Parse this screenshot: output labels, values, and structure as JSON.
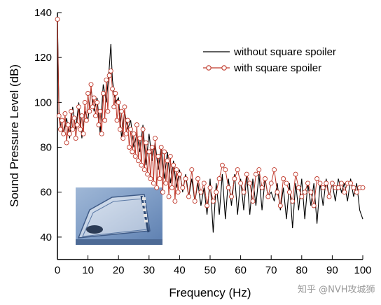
{
  "chart_data": {
    "type": "line",
    "title": "",
    "xlabel": "Frequency (Hz)",
    "ylabel": "Sound Pressure Level (dB)",
    "xlim": [
      0,
      100
    ],
    "ylim": [
      30,
      140
    ],
    "xticks": [
      0,
      10,
      20,
      30,
      40,
      50,
      60,
      70,
      80,
      90,
      100
    ],
    "yticks": [
      40,
      60,
      80,
      100,
      120,
      140
    ],
    "grid": false,
    "legend_position": "top-right",
    "series": [
      {
        "name": "without square spoiler",
        "color": "#000000",
        "marker": "none",
        "x": [
          0,
          0.5,
          1,
          2,
          3,
          4,
          5,
          6,
          7,
          8,
          9,
          10,
          11,
          12,
          13,
          14,
          15,
          16,
          17,
          17.5,
          18,
          19,
          20,
          21,
          22,
          23,
          24,
          25,
          26,
          27,
          28,
          29,
          30,
          31,
          32,
          33,
          34,
          35,
          36,
          37,
          38,
          39,
          40,
          41,
          42,
          43,
          44,
          45,
          46,
          47,
          48,
          49,
          50,
          51,
          52,
          53,
          54,
          55,
          56,
          57,
          58,
          59,
          60,
          61,
          62,
          63,
          64,
          65,
          66,
          67,
          68,
          69,
          70,
          71,
          72,
          73,
          74,
          75,
          76,
          77,
          78,
          79,
          80,
          81,
          82,
          83,
          84,
          85,
          86,
          87,
          88,
          89,
          90,
          91,
          92,
          93,
          94,
          95,
          96,
          97,
          98,
          99,
          100
        ],
        "y": [
          138,
          96,
          90,
          86,
          93,
          84,
          98,
          88,
          100,
          84,
          96,
          92,
          106,
          96,
          102,
          86,
          108,
          100,
          116,
          126,
          110,
          100,
          102,
          84,
          96,
          88,
          92,
          80,
          86,
          78,
          90,
          72,
          86,
          74,
          82,
          70,
          80,
          66,
          78,
          64,
          74,
          62,
          70,
          60,
          68,
          58,
          66,
          56,
          64,
          54,
          62,
          50,
          66,
          42,
          64,
          50,
          68,
          48,
          66,
          54,
          68,
          50,
          66,
          52,
          68,
          50,
          66,
          54,
          68,
          52,
          66,
          58,
          60,
          56,
          64,
          52,
          62,
          48,
          64,
          44,
          64,
          52,
          66,
          48,
          64,
          54,
          64,
          46,
          64,
          54,
          66,
          58,
          64,
          56,
          66,
          60,
          64,
          56,
          66,
          58,
          64,
          52,
          48
        ]
      },
      {
        "name": "with square spoiler",
        "color": "#c0392b",
        "marker": "open-circle",
        "x": [
          0,
          0.5,
          1,
          1.5,
          2,
          2.5,
          3,
          3.5,
          4,
          4.5,
          5,
          5.5,
          6,
          6.5,
          7,
          7.5,
          8,
          8.5,
          9,
          9.5,
          10,
          10.5,
          11,
          11.5,
          12,
          12.5,
          13,
          13.5,
          14,
          14.5,
          15,
          15.5,
          16,
          16.5,
          17,
          17.5,
          18,
          18.5,
          19,
          19.5,
          20,
          20.5,
          21,
          21.5,
          22,
          22.5,
          23,
          23.5,
          24,
          24.5,
          25,
          25.5,
          26,
          26.5,
          27,
          27.5,
          28,
          28.5,
          29,
          29.5,
          30,
          30.5,
          31,
          31.5,
          32,
          32.5,
          33,
          33.5,
          34,
          34.5,
          35,
          35.5,
          36,
          36.5,
          37,
          37.5,
          38,
          38.5,
          39,
          39.5,
          40,
          41,
          42,
          43,
          44,
          45,
          46,
          47,
          48,
          49,
          50,
          51,
          52,
          53,
          54,
          55,
          56,
          57,
          58,
          59,
          60,
          61,
          62,
          63,
          64,
          65,
          66,
          67,
          68,
          69,
          70,
          71,
          72,
          73,
          74,
          75,
          76,
          77,
          78,
          79,
          80,
          81,
          82,
          83,
          84,
          85,
          86,
          87,
          88,
          89,
          90,
          91,
          92,
          93,
          94,
          95,
          96,
          97,
          98,
          99,
          100
        ],
        "y": [
          137,
          94,
          88,
          92,
          86,
          95,
          82,
          90,
          86,
          96,
          88,
          93,
          84,
          90,
          98,
          88,
          94,
          86,
          100,
          92,
          104,
          96,
          108,
          98,
          102,
          94,
          100,
          90,
          96,
          86,
          104,
          92,
          110,
          96,
          112,
          114,
          106,
          98,
          104,
          92,
          100,
          88,
          96,
          84,
          98,
          86,
          92,
          80,
          88,
          78,
          86,
          76,
          90,
          74,
          84,
          72,
          88,
          70,
          82,
          68,
          78,
          66,
          80,
          64,
          84,
          62,
          76,
          66,
          80,
          60,
          78,
          64,
          74,
          58,
          76,
          62,
          72,
          56,
          70,
          60,
          68,
          62,
          66,
          58,
          70,
          56,
          66,
          60,
          64,
          54,
          62,
          56,
          60,
          66,
          72,
          70,
          62,
          58,
          66,
          70,
          64,
          60,
          68,
          64,
          56,
          68,
          70,
          62,
          66,
          58,
          64,
          70,
          60,
          54,
          66,
          64,
          60,
          56,
          68,
          62,
          58,
          60,
          64,
          60,
          54,
          66,
          64,
          62,
          64,
          58,
          64,
          62,
          62,
          64,
          60,
          64,
          64,
          62,
          60,
          62,
          62
        ]
      }
    ],
    "inset": {
      "description_visible": false
    }
  },
  "watermark": {
    "text": "知乎 @NVH攻城狮"
  }
}
